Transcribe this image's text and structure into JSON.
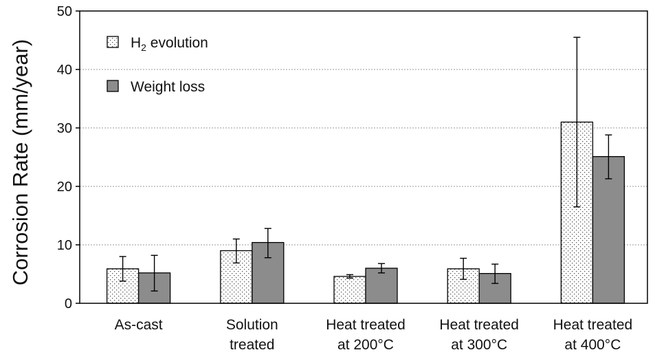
{
  "chart_data": {
    "type": "bar",
    "title": "",
    "xlabel": "",
    "ylabel": "Corrosion Rate (mm/year)",
    "ylim": [
      0,
      50
    ],
    "yticks": [
      0,
      10,
      20,
      30,
      40,
      50
    ],
    "grid": true,
    "legend_position": "top-left",
    "categories": [
      [
        "As-cast"
      ],
      [
        "Solution",
        "treated"
      ],
      [
        "Heat treated",
        "at 200°C"
      ],
      [
        "Heat treated",
        "at 300°C"
      ],
      [
        "Heat treated",
        "at 400°C"
      ]
    ],
    "series": [
      {
        "name": "H2 evolution",
        "legend_main": "H",
        "legend_sub": "2",
        "legend_rest": " evolution",
        "pattern": "dotted",
        "color": "#ffffff",
        "values": [
          5.9,
          9.0,
          4.6,
          5.9,
          31.0
        ],
        "err_low": [
          3.8,
          6.9,
          4.3,
          4.1,
          16.5
        ],
        "err_high": [
          8.0,
          11.0,
          4.9,
          7.7,
          45.5
        ]
      },
      {
        "name": "Weight loss",
        "legend_main": "Weight loss",
        "legend_sub": "",
        "legend_rest": "",
        "pattern": "solid",
        "color": "#8c8c8c",
        "values": [
          5.2,
          10.4,
          6.0,
          5.1,
          25.1
        ],
        "err_low": [
          2.1,
          7.8,
          5.2,
          3.4,
          21.3
        ],
        "err_high": [
          8.2,
          12.8,
          6.8,
          6.7,
          28.8
        ]
      }
    ]
  }
}
